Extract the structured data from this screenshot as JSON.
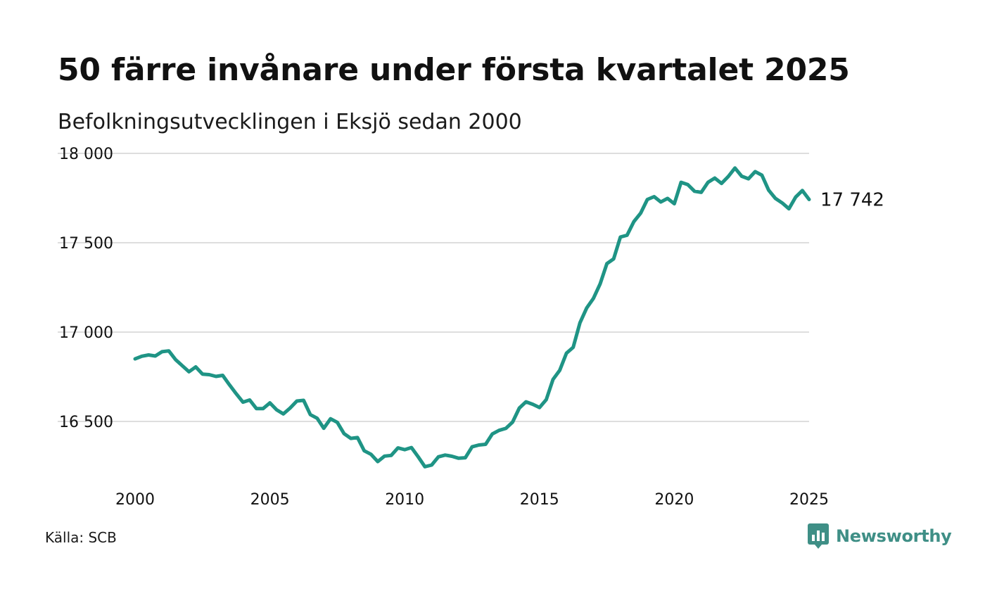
{
  "header": {
    "title": "50 färre invånare under första kvartalet 2025",
    "subtitle": "Befolkningsutvecklingen i Eksjö sedan 2000"
  },
  "footer": {
    "source": "Källa: SCB",
    "brand": "Newsworthy",
    "brand_icon": "newsworthy-logo-icon"
  },
  "chart_data": {
    "type": "line",
    "title": "50 färre invånare under första kvartalet 2025",
    "subtitle": "Befolkningsutvecklingen i Eksjö sedan 2000",
    "xlabel": "",
    "ylabel": "",
    "xlim": [
      2000,
      2025
    ],
    "ylim": [
      16200,
      18000
    ],
    "y_ticks": [
      16500,
      17000,
      17500,
      18000
    ],
    "y_tick_labels": [
      "16 500",
      "17 000",
      "17 500",
      "18 000"
    ],
    "x_ticks": [
      2000,
      2005,
      2010,
      2015,
      2020,
      2025
    ],
    "x_tick_labels": [
      "2000",
      "2005",
      "2010",
      "2015",
      "2020",
      "2025"
    ],
    "grid": true,
    "legend": "none",
    "line_color": "#1f9485",
    "end_label": "17 742",
    "series": [
      {
        "x": [
          2000.0,
          2000.25,
          2000.5,
          2000.75,
          2001.0,
          2001.25,
          2001.5,
          2001.75,
          2002.0,
          2002.25,
          2002.5,
          2002.75,
          2003.0,
          2003.25,
          2003.5,
          2003.75,
          2004.0,
          2004.25,
          2004.5,
          2004.75,
          2005.0,
          2005.25,
          2005.5,
          2005.75,
          2006.0,
          2006.25,
          2006.5,
          2006.75,
          2007.0,
          2007.25,
          2007.5,
          2007.75,
          2008.0,
          2008.25,
          2008.5,
          2008.75,
          2009.0,
          2009.25,
          2009.5,
          2009.75,
          2010.0,
          2010.25,
          2010.5,
          2010.75,
          2011.0,
          2011.25,
          2011.5,
          2011.75,
          2012.0,
          2012.25,
          2012.5,
          2012.75,
          2013.0,
          2013.25,
          2013.5,
          2013.75,
          2014.0,
          2014.25,
          2014.5,
          2014.75,
          2015.0,
          2015.25,
          2015.5,
          2015.75,
          2016.0,
          2016.25,
          2016.5,
          2016.75,
          2017.0,
          2017.25,
          2017.5,
          2017.75,
          2018.0,
          2018.25,
          2018.5,
          2018.75,
          2019.0,
          2019.25,
          2019.5,
          2019.75,
          2020.0,
          2020.25,
          2020.5,
          2020.75,
          2021.0,
          2021.25,
          2021.5,
          2021.75,
          2022.0,
          2022.25,
          2022.5,
          2022.75,
          2023.0,
          2023.25,
          2023.5,
          2023.75,
          2024.0,
          2024.25,
          2024.5,
          2024.75,
          2025.0
        ],
        "values": [
          16850,
          16865,
          16872,
          16866,
          16890,
          16895,
          16846,
          16812,
          16778,
          16805,
          16765,
          16762,
          16752,
          16758,
          16705,
          16655,
          16608,
          16620,
          16572,
          16572,
          16604,
          16565,
          16542,
          16575,
          16614,
          16618,
          16538,
          16518,
          16462,
          16515,
          16495,
          16432,
          16405,
          16410,
          16336,
          16316,
          16275,
          16306,
          16310,
          16352,
          16342,
          16354,
          16302,
          16247,
          16256,
          16302,
          16312,
          16305,
          16294,
          16297,
          16358,
          16368,
          16372,
          16430,
          16450,
          16461,
          16496,
          16575,
          16610,
          16596,
          16578,
          16622,
          16735,
          16786,
          16882,
          16915,
          17052,
          17135,
          17188,
          17270,
          17383,
          17410,
          17532,
          17542,
          17618,
          17665,
          17742,
          17758,
          17728,
          17748,
          17718,
          17838,
          17825,
          17788,
          17782,
          17838,
          17862,
          17832,
          17870,
          17918,
          17872,
          17858,
          17898,
          17878,
          17794,
          17748,
          17723,
          17690,
          17755,
          17792,
          17742
        ]
      }
    ]
  }
}
